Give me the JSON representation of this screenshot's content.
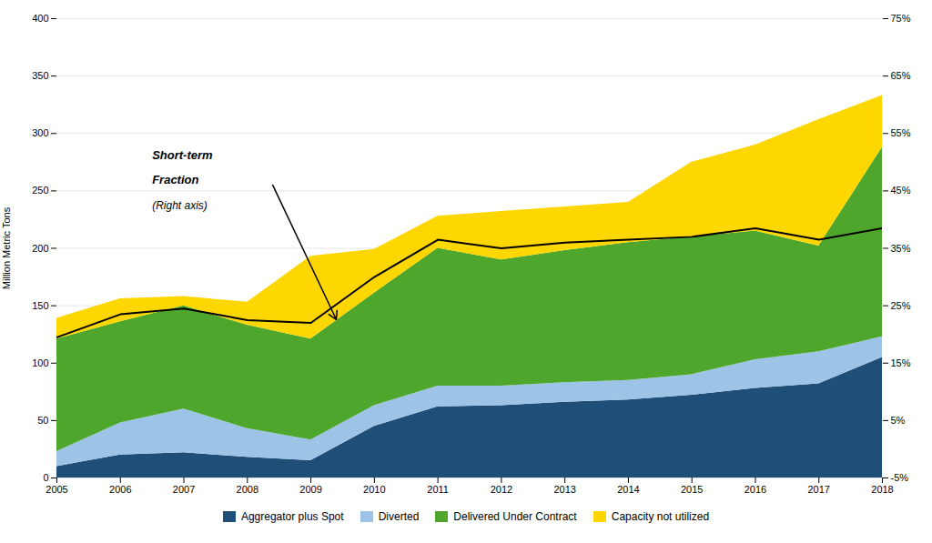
{
  "chart_data": {
    "type": "area",
    "stacked": true,
    "ylabel": "Million Metric Tons",
    "x": [
      2005,
      2006,
      2007,
      2008,
      2009,
      2010,
      2011,
      2012,
      2013,
      2014,
      2015,
      2016,
      2017,
      2018
    ],
    "xlim": [
      2005,
      2018
    ],
    "xticks": [
      2005,
      2006,
      2007,
      2008,
      2009,
      2010,
      2011,
      2012,
      2013,
      2014,
      2015,
      2016,
      2017,
      2018
    ],
    "ylim": [
      0,
      400
    ],
    "yticks": [
      0,
      50,
      100,
      150,
      200,
      250,
      300,
      350,
      400
    ],
    "y2lim": [
      -5,
      75
    ],
    "y2ticks": [
      {
        "value": -5,
        "label": "-5%"
      },
      {
        "value": 5,
        "label": "5%"
      },
      {
        "value": 15,
        "label": "15%"
      },
      {
        "value": 25,
        "label": "25%"
      },
      {
        "value": 35,
        "label": "35%"
      },
      {
        "value": 45,
        "label": "45%"
      },
      {
        "value": 55,
        "label": "55%"
      },
      {
        "value": 65,
        "label": "65%"
      },
      {
        "value": 75,
        "label": "75%"
      }
    ],
    "grid": true,
    "legend": "bottom",
    "series": [
      {
        "name": "Aggregator plus Spot",
        "color": "#1f4e79",
        "values": [
          10,
          20,
          22,
          18,
          15,
          45,
          62,
          63,
          66,
          68,
          72,
          78,
          82,
          105
        ]
      },
      {
        "name": "Diverted",
        "color": "#9dc3e6",
        "values": [
          13,
          28,
          38,
          25,
          18,
          18,
          18,
          17,
          17,
          17,
          18,
          25,
          28,
          18
        ]
      },
      {
        "name": "Delivered Under Contract",
        "color": "#4ea72c",
        "values": [
          98,
          88,
          90,
          90,
          88,
          98,
          120,
          110,
          115,
          120,
          120,
          112,
          92,
          165
        ]
      },
      {
        "name": "Capacity not utilized",
        "color": "#ffd700",
        "values": [
          18,
          20,
          8,
          20,
          72,
          38,
          28,
          42,
          38,
          35,
          65,
          75,
          110,
          45
        ]
      },
      {
        "type": "line",
        "axis": "y2",
        "color": "black",
        "values": [
          19.5,
          23.5,
          24.5,
          22.5,
          22.0,
          30.0,
          36.5,
          35.0,
          36.0,
          36.5,
          37.0,
          38.5,
          36.5,
          38.5
        ]
      }
    ],
    "annotations": [
      {
        "text": "Short-term",
        "x": 2006.5,
        "y": 278
      },
      {
        "text": "Fraction",
        "x": 2006.5,
        "y": 256
      },
      {
        "text": "(Right axis)",
        "x": 2006.5,
        "y": 234
      }
    ],
    "arrows": [
      {
        "x1": 2008.4,
        "y1": 255,
        "x2": 2009.4,
        "y2": 138
      }
    ]
  }
}
